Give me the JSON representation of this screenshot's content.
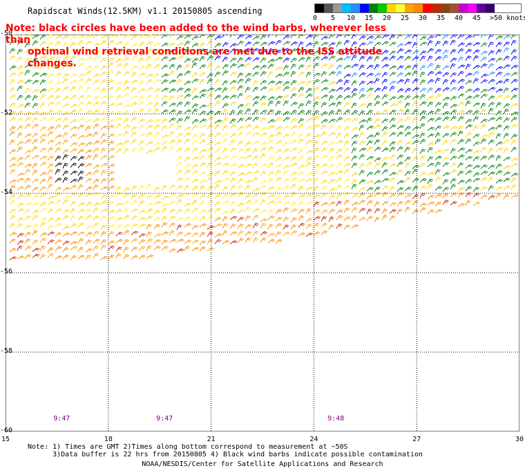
{
  "title": "Rapidscat Winds(12.5KM) v1.1 20150805 ascending",
  "note": {
    "line1": "Note: black circles have been added to the wind barbs, wherever less than",
    "line2": "optimal wind retrieval conditions are met due to the ISS attitude changes."
  },
  "speed_scale": {
    "units_label": ">50 knots",
    "ticks": [
      "0",
      "5",
      "10",
      "15",
      "20",
      "25",
      "30",
      "35",
      "40",
      "45"
    ],
    "colors": [
      "#000000",
      "#555555",
      "#999999",
      "#00bfff",
      "#1e90ff",
      "#0000ff",
      "#008000",
      "#00cc00",
      "#ffd700",
      "#ffff33",
      "#ffa500",
      "#ff8c00",
      "#ff0000",
      "#cc2200",
      "#8b4513",
      "#a0522d",
      "#cc00cc",
      "#ff00ff",
      "#660099",
      "#330066"
    ]
  },
  "map": {
    "lat_labels": [
      "-50",
      "-52",
      "-54",
      "-56",
      "-58",
      "-60"
    ],
    "lon_labels": [
      "15",
      "18",
      "21",
      "24",
      "27",
      "30"
    ],
    "lat_range": [
      -60,
      -50
    ],
    "lon_range": [
      15,
      30
    ],
    "pass_times": [
      {
        "label": "9:47",
        "lon": 16.6
      },
      {
        "label": "9:47",
        "lon": 19.6
      },
      {
        "label": "9:48",
        "lon": 24.6
      }
    ]
  },
  "footnote": {
    "line1": "Note: 1) Times are GMT 2)Times along bottom correspond to measurement at ~50S",
    "line2": "      3)Data buffer is 22 hrs from 20150805 4) Black wind barbs indicate possible contamination"
  },
  "credit": "NOAA/NESDIS/Center for Satellite Applications and Research"
}
